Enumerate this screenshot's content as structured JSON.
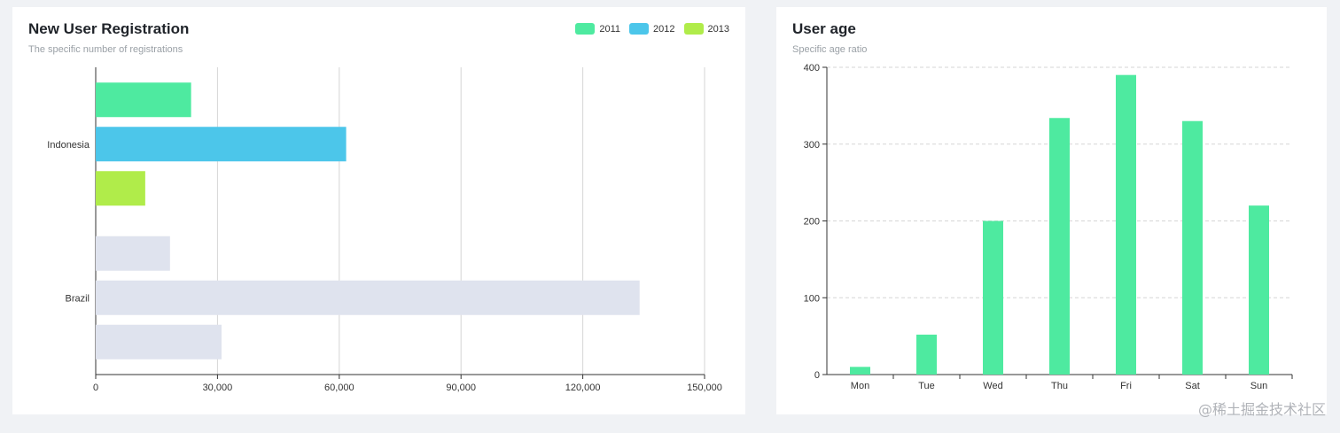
{
  "colors": {
    "y2011": "#4eeaa0",
    "y2012": "#4cc6ea",
    "y2013": "#b0ec4a",
    "inactive": "#dfe3ee",
    "bar": "#4eeaa0",
    "grid": "#d6d6d6"
  },
  "watermark": "@稀土掘金技术社区",
  "chart_data": [
    {
      "type": "bar",
      "orientation": "horizontal",
      "title": "New User Registration",
      "subtitle": "The specific number of registrations",
      "categories": [
        "Indonesia",
        "Brazil"
      ],
      "series": [
        {
          "name": "2011",
          "values": [
            23500,
            18300
          ]
        },
        {
          "name": "2012",
          "values": [
            61700,
            134000
          ]
        },
        {
          "name": "2013",
          "values": [
            12200,
            31000
          ]
        }
      ],
      "xlim": [
        0,
        150000
      ],
      "xticks": [
        "0",
        "30,000",
        "60,000",
        "90,000",
        "120,000",
        "150,000"
      ],
      "highlighted_category": "Indonesia",
      "grid": true,
      "legend_position": "top-right"
    },
    {
      "type": "bar",
      "title": "User age",
      "subtitle": "Specific age ratio",
      "categories": [
        "Mon",
        "Tue",
        "Wed",
        "Thu",
        "Fri",
        "Sat",
        "Sun"
      ],
      "values": [
        10,
        52,
        200,
        334,
        390,
        330,
        220
      ],
      "ylim": [
        0,
        400
      ],
      "yticks": [
        "0",
        "100",
        "200",
        "300",
        "400"
      ],
      "grid": true
    }
  ]
}
